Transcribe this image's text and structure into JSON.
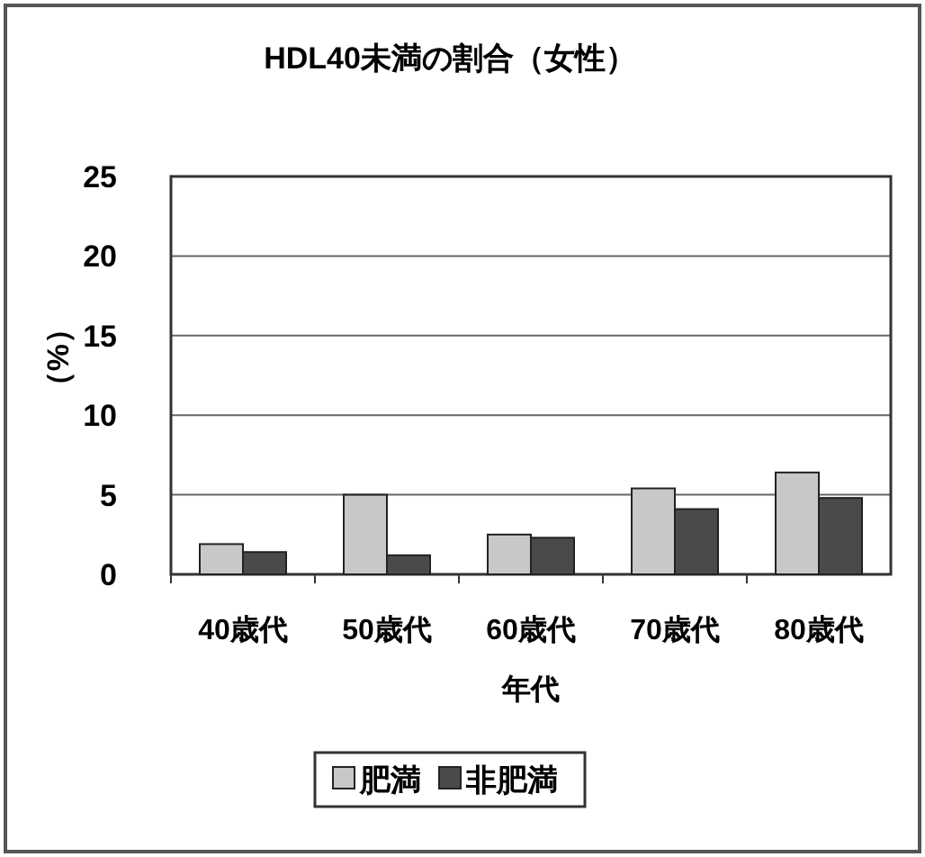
{
  "chart_data": {
    "type": "bar",
    "title": "HDL40未満の割合（女性）",
    "xlabel": "年代",
    "ylabel": "（%）",
    "categories": [
      "40歳代",
      "50歳代",
      "60歳代",
      "70歳代",
      "80歳代"
    ],
    "series": [
      {
        "name": "肥満",
        "color": "#c8c8c8",
        "values": [
          1.9,
          5.0,
          2.5,
          5.4,
          6.4
        ]
      },
      {
        "name": "非肥満",
        "color": "#4a4a4a",
        "values": [
          1.4,
          1.2,
          2.3,
          4.1,
          4.8
        ]
      }
    ],
    "ylim": [
      0,
      25
    ],
    "yticks": [
      0,
      5,
      10,
      15,
      20,
      25
    ],
    "grid": "y",
    "legend": "bottom"
  }
}
